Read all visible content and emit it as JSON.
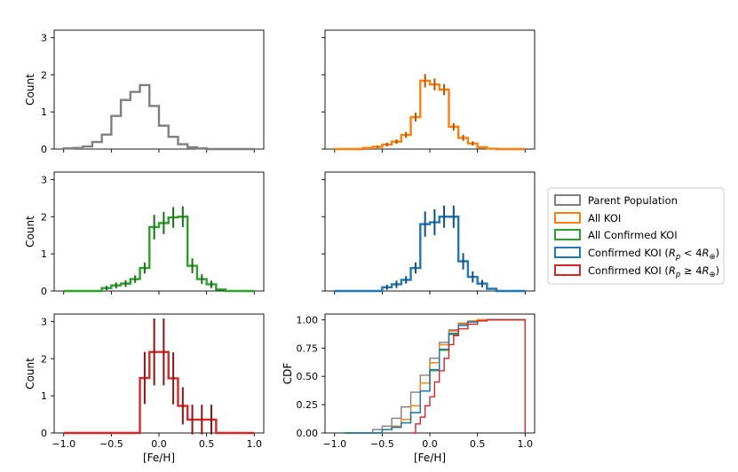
{
  "chart_data": {
    "type": "histogram",
    "bin_edges": [
      -1.0,
      -0.9,
      -0.8,
      -0.7,
      -0.6,
      -0.5,
      -0.4,
      -0.3,
      -0.2,
      -0.1,
      0.0,
      0.1,
      0.2,
      0.3,
      0.4,
      0.5,
      0.6,
      0.7,
      0.8,
      0.9,
      1.0
    ],
    "panels": [
      {
        "id": "parent",
        "title": "",
        "ylabel": "Count",
        "xlabel": "",
        "ylim": [
          0,
          3.2
        ],
        "yticks": [
          "0",
          "1",
          "2",
          "3"
        ],
        "show_x_ticklabels": false,
        "show_y_ticklabels": true,
        "color": "#7f7f7f",
        "legend": "Parent Population",
        "values": [
          0.02,
          0.03,
          0.07,
          0.19,
          0.39,
          0.89,
          1.32,
          1.54,
          1.72,
          1.16,
          0.63,
          0.33,
          0.13,
          0.05,
          0.02,
          0,
          0,
          0,
          0,
          0
        ],
        "errors": []
      },
      {
        "id": "all-koi",
        "title": "",
        "ylabel": "",
        "xlabel": "",
        "ylim": [
          0,
          3.2
        ],
        "yticks": [
          "0",
          "1",
          "2",
          "3"
        ],
        "show_x_ticklabels": false,
        "show_y_ticklabels": false,
        "color": "#ff7f0e",
        "legend": "All KOI",
        "values": [
          0,
          0,
          0,
          0.03,
          0.06,
          0.12,
          0.2,
          0.38,
          0.86,
          1.84,
          1.74,
          1.6,
          0.6,
          0.3,
          0.15,
          0.05,
          0.01,
          0,
          0,
          0
        ],
        "errors": [
          0,
          0,
          0,
          0,
          0.03,
          0.05,
          0.06,
          0.08,
          0.12,
          0.18,
          0.16,
          0.15,
          0.1,
          0.08,
          0.06,
          0,
          0,
          0,
          0,
          0
        ]
      },
      {
        "id": "all-confirmed",
        "title": "",
        "ylabel": "Count",
        "xlabel": "",
        "ylim": [
          0,
          3.2
        ],
        "yticks": [
          "0",
          "1",
          "2",
          "3"
        ],
        "show_x_ticklabels": false,
        "show_y_ticklabels": true,
        "color": "#2ca02c",
        "legend": "All Confirmed KOI",
        "values": [
          0,
          0,
          0,
          0,
          0.08,
          0.15,
          0.2,
          0.32,
          0.62,
          1.72,
          1.83,
          1.98,
          2.0,
          0.68,
          0.32,
          0.18,
          0.04,
          0,
          0,
          0
        ],
        "errors": [
          0,
          0,
          0,
          0,
          0.06,
          0.08,
          0.09,
          0.1,
          0.15,
          0.33,
          0.3,
          0.28,
          0.28,
          0.2,
          0.13,
          0.1,
          0,
          0,
          0,
          0
        ]
      },
      {
        "id": "confirmed-small",
        "title": "",
        "ylabel": "",
        "xlabel": "",
        "ylim": [
          0,
          3.2
        ],
        "yticks": [
          "0",
          "1",
          "2",
          "3"
        ],
        "show_x_ticklabels": false,
        "show_y_ticklabels": false,
        "color": "#1f77b4",
        "legend": "Confirmed KOI (R_p < 4R_⊕)",
        "values": [
          0,
          0,
          0,
          0,
          0,
          0.1,
          0.18,
          0.3,
          0.62,
          1.8,
          1.85,
          2.0,
          2.0,
          0.8,
          0.38,
          0.2,
          0.06,
          0,
          0,
          0
        ],
        "errors": [
          0,
          0,
          0,
          0,
          0,
          0.07,
          0.1,
          0.1,
          0.15,
          0.34,
          0.35,
          0.3,
          0.3,
          0.22,
          0.15,
          0.1,
          0,
          0,
          0,
          0
        ]
      },
      {
        "id": "confirmed-large",
        "title": "",
        "ylabel": "Count",
        "xlabel": "[Fe/H]",
        "ylim": [
          0,
          3.2
        ],
        "yticks": [
          "0",
          "1",
          "2",
          "3"
        ],
        "show_x_ticklabels": true,
        "show_y_ticklabels": true,
        "color": "#d62728",
        "legend": "Confirmed KOI (R_p ≥ 4R_⊕)",
        "values": [
          0,
          0,
          0,
          0,
          0,
          0,
          0,
          0,
          1.48,
          2.18,
          2.18,
          1.47,
          0.73,
          0.36,
          0.36,
          0.36,
          0,
          0,
          0,
          0
        ],
        "errors": [
          0,
          0,
          0,
          0,
          0,
          0,
          0,
          0,
          0.7,
          0.9,
          0.9,
          0.7,
          0.5,
          0.4,
          0.4,
          0.4,
          0,
          0,
          0,
          0
        ]
      }
    ],
    "cdf": {
      "ylabel": "CDF",
      "xlabel": "[Fe/H]",
      "ylim": [
        0,
        1.05
      ],
      "yticks": [
        "0.00",
        "0.25",
        "0.50",
        "0.75",
        "1.00"
      ],
      "series": [
        {
          "name": "Parent Population",
          "color": "#7f7f7f",
          "points": [
            [
              -0.9,
              0.0
            ],
            [
              -0.6,
              0.03
            ],
            [
              -0.5,
              0.06
            ],
            [
              -0.4,
              0.13
            ],
            [
              -0.3,
              0.23
            ],
            [
              -0.2,
              0.36
            ],
            [
              -0.1,
              0.51
            ],
            [
              0.0,
              0.66
            ],
            [
              0.1,
              0.8
            ],
            [
              0.2,
              0.91
            ],
            [
              0.3,
              0.97
            ],
            [
              0.4,
              0.99
            ],
            [
              0.5,
              1.0
            ],
            [
              1.0,
              1.0
            ]
          ]
        },
        {
          "name": "All KOI",
          "color": "#ff7f0e",
          "points": [
            [
              -0.9,
              0.0
            ],
            [
              -0.5,
              0.03
            ],
            [
              -0.4,
              0.06
            ],
            [
              -0.3,
              0.12
            ],
            [
              -0.2,
              0.24
            ],
            [
              -0.1,
              0.44
            ],
            [
              0.0,
              0.62
            ],
            [
              0.1,
              0.78
            ],
            [
              0.2,
              0.9
            ],
            [
              0.3,
              0.96
            ],
            [
              0.4,
              0.99
            ],
            [
              0.5,
              1.0
            ],
            [
              1.0,
              1.0
            ]
          ]
        },
        {
          "name": "All Confirmed KOI",
          "color": "#2ca02c",
          "points": [
            [
              -0.9,
              0.0
            ],
            [
              -0.5,
              0.03
            ],
            [
              -0.4,
              0.05
            ],
            [
              -0.3,
              0.09
            ],
            [
              -0.2,
              0.18
            ],
            [
              -0.1,
              0.37
            ],
            [
              0.0,
              0.55
            ],
            [
              0.1,
              0.73
            ],
            [
              0.2,
              0.87
            ],
            [
              0.3,
              0.95
            ],
            [
              0.4,
              0.98
            ],
            [
              0.5,
              0.99
            ],
            [
              0.6,
              1.0
            ],
            [
              1.0,
              1.0
            ]
          ]
        },
        {
          "name": "Confirmed KOI (R_p < 4R_⊕)",
          "color": "#1f77b4",
          "points": [
            [
              -0.9,
              0.0
            ],
            [
              -0.5,
              0.03
            ],
            [
              -0.4,
              0.05
            ],
            [
              -0.3,
              0.09
            ],
            [
              -0.2,
              0.18
            ],
            [
              -0.1,
              0.37
            ],
            [
              0.0,
              0.56
            ],
            [
              0.1,
              0.74
            ],
            [
              0.2,
              0.88
            ],
            [
              0.3,
              0.95
            ],
            [
              0.4,
              0.98
            ],
            [
              0.5,
              0.99
            ],
            [
              0.6,
              1.0
            ],
            [
              1.0,
              1.0
            ]
          ]
        },
        {
          "name": "Confirmed KOI (R_p ≥ 4R_⊕)",
          "color": "#d62728",
          "points": [
            [
              -0.2,
              0.0
            ],
            [
              -0.15,
              0.08
            ],
            [
              -0.1,
              0.14
            ],
            [
              -0.05,
              0.24
            ],
            [
              0.0,
              0.32
            ],
            [
              0.05,
              0.45
            ],
            [
              0.1,
              0.55
            ],
            [
              0.15,
              0.66
            ],
            [
              0.2,
              0.78
            ],
            [
              0.25,
              0.86
            ],
            [
              0.3,
              0.92
            ],
            [
              0.4,
              0.96
            ],
            [
              0.5,
              0.99
            ],
            [
              0.6,
              1.0
            ],
            [
              1.0,
              1.0
            ],
            [
              1.0,
              0.0
            ]
          ]
        }
      ]
    },
    "xlim": [
      -1.1,
      1.1
    ],
    "xticks": [
      "−1.0",
      "−0.5",
      "0.0",
      "0.5",
      "1.0"
    ],
    "legend": {
      "placement": "right-center",
      "entries": [
        {
          "label": "Parent Population",
          "color": "#7f7f7f"
        },
        {
          "label": "All KOI",
          "color": "#ff7f0e"
        },
        {
          "label": "All Confirmed KOI",
          "color": "#2ca02c"
        },
        {
          "label": "Confirmed KOI (",
          "math_main": "R",
          "math_sub": "p",
          "math_rel": " < 4",
          "math_R": "R",
          "math_sym": "⊕",
          "suffix": ")",
          "color": "#1f77b4"
        },
        {
          "label": "Confirmed KOI (",
          "math_main": "R",
          "math_sub": "p",
          "math_rel": " ≥ 4",
          "math_R": "R",
          "math_sym": "⊕",
          "suffix": ")",
          "color": "#d62728"
        }
      ]
    }
  }
}
